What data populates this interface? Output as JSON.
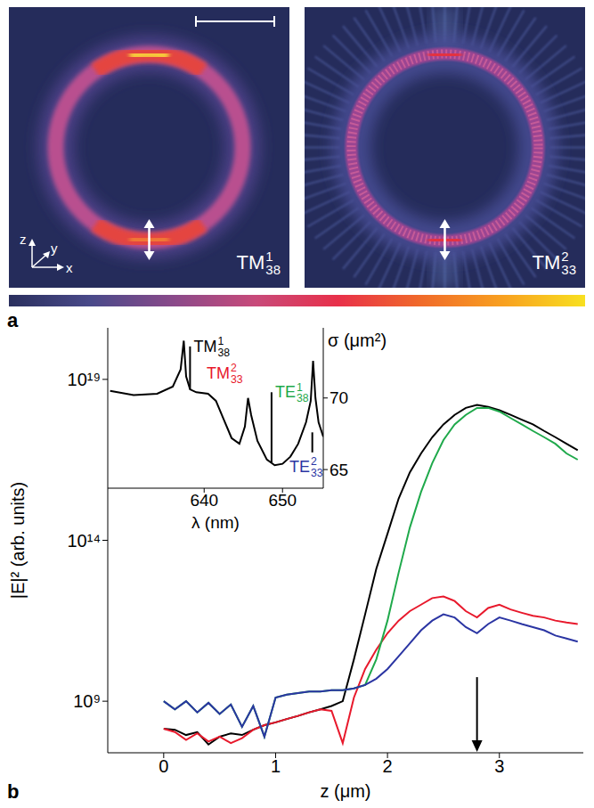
{
  "panel_a": {
    "label": "a",
    "images": [
      {
        "mode": {
          "base": "TM",
          "sup": "1",
          "sub": "38"
        }
      },
      {
        "mode": {
          "base": "TM",
          "sup": "2",
          "sub": "33"
        }
      }
    ],
    "axis_labels": [
      "z",
      "y",
      "x"
    ]
  },
  "panel_b": {
    "label": "b"
  },
  "chart_data": [
    {
      "type": "line",
      "x_label": "z (μm)",
      "y_label": "|E|² (arb. units)",
      "x": [
        0,
        0.1,
        0.2,
        0.3,
        0.4,
        0.5,
        0.6,
        0.7,
        0.8,
        0.9,
        1,
        1.1,
        1.2,
        1.3,
        1.4,
        1.5,
        1.6,
        1.7,
        1.8,
        1.9,
        2,
        2.1,
        2.2,
        2.3,
        2.4,
        2.5,
        2.6,
        2.7,
        2.8,
        2.9,
        3,
        3.1,
        3.2,
        3.3,
        3.4,
        3.5,
        3.6,
        3.7
      ],
      "series": [
        {
          "color": "#000000",
          "values": [
            140000000.0,
            130000000.0,
            89000000.0,
            110000000.0,
            45000000.0,
            79000000.0,
            100000000.0,
            89000000.0,
            130000000.0,
            180000000.0,
            220000000.0,
            280000000.0,
            350000000.0,
            450000000.0,
            560000000.0,
            710000000.0,
            1000000000.0,
            20000000000.0,
            500000000000.0,
            13000000000000.0,
            160000000000000.0,
            2000000000000000.0,
            1.3e+16,
            5e+16,
            1.6e+17,
            4e+17,
            7.9e+17,
            1.3e+18,
            1.6e+18,
            1.4e+18,
            1.1e+18,
            7.9e+17,
            5.6e+17,
            4e+17,
            2.5e+17,
            1.6e+17,
            1e+17,
            6.3e+16
          ]
        },
        {
          "color": "#e8192c",
          "values": [
            140000000.0,
            110000000.0,
            63000000.0,
            100000000.0,
            56000000.0,
            79000000.0,
            50000000.0,
            71000000.0,
            130000000.0,
            180000000.0,
            220000000.0,
            280000000.0,
            350000000.0,
            450000000.0,
            560000000.0,
            500000000.0,
            50000000.0,
            1300000000.0,
            10000000000.0,
            40000000000.0,
            130000000000.0,
            320000000000.0,
            630000000000.0,
            1000000000000.0,
            1600000000000.0,
            1800000000000.0,
            1300000000000.0,
            630000000000.0,
            400000000000.0,
            790000000000.0,
            1000000000000.0,
            710000000000.0,
            560000000000.0,
            450000000000.0,
            400000000000.0,
            320000000000.0,
            280000000000.0,
            250000000000.0
          ]
        },
        {
          "color": "#1fa94b",
          "values": [
            1000000000.0,
            560000000.0,
            1000000000.0,
            450000000.0,
            890000000.0,
            400000000.0,
            790000000.0,
            160000000.0,
            710000000.0,
            79000000.0,
            1300000000.0,
            1600000000.0,
            1800000000.0,
            2000000000.0,
            2000000000.0,
            2200000000.0,
            2200000000.0,
            2500000000.0,
            3200000000.0,
            20000000000.0,
            320000000000.0,
            10000000000000.0,
            250000000000000.0,
            3200000000000000.0,
            2.5e+16,
            1.3e+17,
            4e+17,
            7.9e+17,
            1.3e+18,
            1.3e+18,
            1e+18,
            6.3e+17,
            4e+17,
            2.5e+17,
            1.6e+17,
            1e+17,
            5e+16,
            3.2e+16
          ]
        },
        {
          "color": "#2b35a3",
          "values": [
            1000000000.0,
            560000000.0,
            1000000000.0,
            450000000.0,
            890000000.0,
            400000000.0,
            790000000.0,
            160000000.0,
            710000000.0,
            79000000.0,
            1300000000.0,
            1600000000.0,
            1800000000.0,
            2000000000.0,
            2000000000.0,
            2200000000.0,
            2200000000.0,
            2500000000.0,
            3200000000.0,
            5000000000.0,
            10000000000.0,
            25000000000.0,
            63000000000.0,
            160000000000.0,
            320000000000.0,
            500000000000.0,
            400000000000.0,
            200000000000.0,
            130000000000.0,
            250000000000.0,
            400000000000.0,
            320000000000.0,
            250000000000.0,
            200000000000.0,
            160000000000.0,
            110000000000.0,
            89000000000.0,
            71000000000.0
          ]
        }
      ],
      "xlim": [
        -0.5,
        3.75
      ],
      "xticks": [
        0,
        1,
        2,
        3
      ],
      "ylim": [
        25000000.0,
        4e+20
      ],
      "yticks": [
        {
          "value": 1000000000.0,
          "label": "10⁹"
        },
        {
          "value": 100000000000000.0,
          "label": "10¹⁴"
        },
        {
          "value": 1e+19,
          "label": "10¹⁹"
        }
      ],
      "log": "y",
      "grid": false,
      "annotations": [
        {
          "type": "arrow",
          "x": 2.8,
          "y": 5600000000.0
        }
      ]
    },
    {
      "type": "line",
      "x_label": "λ (nm)",
      "y_label": "σ (μm²)",
      "x": [
        628,
        631,
        634,
        636,
        637,
        637.4,
        637.7,
        638.2,
        639,
        640.5,
        641.5,
        642.5,
        643.5,
        644.5,
        645.2,
        645.6,
        646,
        646.8,
        648,
        649,
        650,
        651,
        652,
        653,
        653.6,
        653.9,
        654.2,
        654.6,
        655.2
      ],
      "values": [
        70.5,
        70.2,
        70.3,
        70.8,
        72.0,
        74.0,
        71.5,
        70.6,
        70.4,
        70.3,
        69.8,
        68.5,
        67.2,
        66.8,
        68.0,
        70.0,
        68.8,
        67.0,
        65.7,
        65.3,
        65.4,
        65.9,
        66.8,
        68.3,
        69.8,
        72.6,
        70.0,
        68.3,
        67.3
      ],
      "color": "#000000",
      "xlim": [
        627.7,
        655.2
      ],
      "xticks": [
        640,
        650
      ],
      "ylim": [
        63.7,
        74.9
      ],
      "yticks": [
        65,
        70
      ],
      "grid": false,
      "annotations": [
        {
          "text": {
            "base": "TM",
            "sup": "1",
            "sub": "38"
          },
          "color": "#000000",
          "x": 638.2,
          "y": 70.6,
          "y_end": 73.6
        },
        {
          "text": {
            "base": "TM",
            "sup": "2",
            "sub": "33"
          },
          "color": "#e8192c",
          "x": 645.6,
          "y": 70.0
        },
        {
          "text": {
            "base": "TE",
            "sup": "1",
            "sub": "38"
          },
          "color": "#1fa94b",
          "x": 648.6,
          "y": 65.5,
          "y_end": 70.4
        },
        {
          "text": {
            "base": "TE",
            "sup": "2",
            "sub": "33"
          },
          "color": "#2b35a3",
          "x": 653.8,
          "y": 67.6,
          "y_end": 66.2
        }
      ]
    }
  ]
}
